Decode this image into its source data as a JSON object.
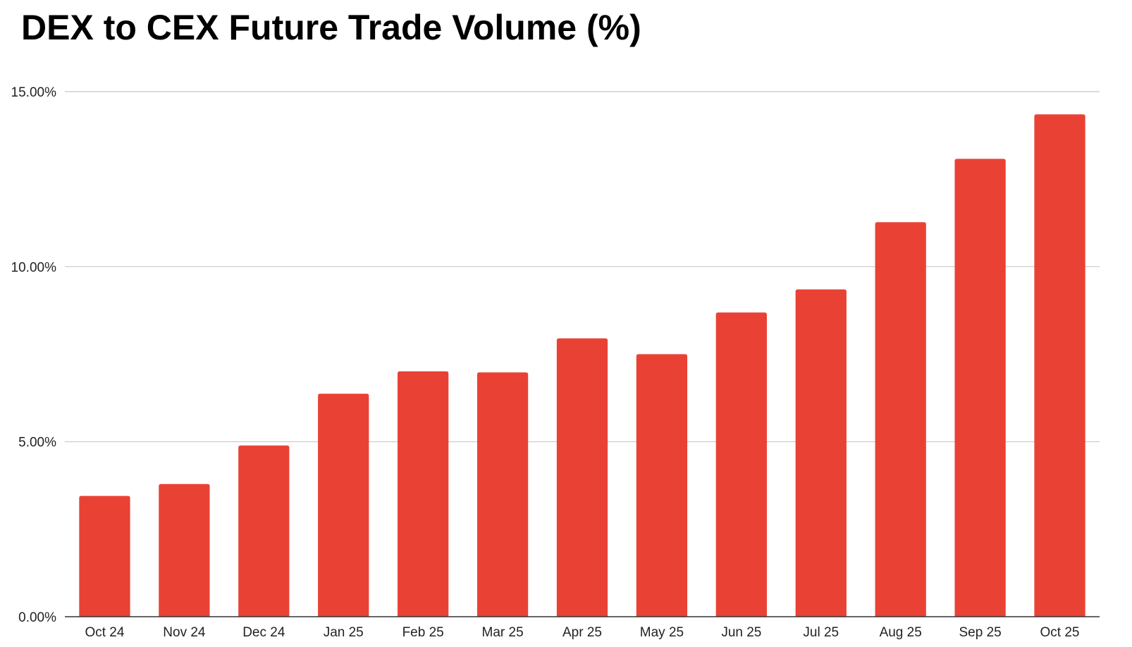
{
  "chart_data": {
    "type": "bar",
    "title": "DEX to CEX Future Trade Volume (%)",
    "xlabel": "",
    "ylabel": "",
    "categories": [
      "Oct 24",
      "Nov 24",
      "Dec 24",
      "Jan 25",
      "Feb 25",
      "Mar 25",
      "Apr 25",
      "May 25",
      "Jun 25",
      "Jul 25",
      "Aug 25",
      "Sep 25",
      "Oct 25"
    ],
    "values": [
      3.45,
      3.79,
      4.89,
      6.37,
      7.01,
      6.98,
      7.95,
      7.5,
      8.69,
      9.35,
      11.27,
      13.08,
      14.35
    ],
    "ylim": [
      0,
      15
    ],
    "yticks": [
      0,
      5,
      10,
      15
    ],
    "ytick_labels": [
      "0.00%",
      "5.00%",
      "10.00%",
      "15.00%"
    ],
    "grid": true,
    "legend": "none",
    "bar_color": "#e94235"
  }
}
